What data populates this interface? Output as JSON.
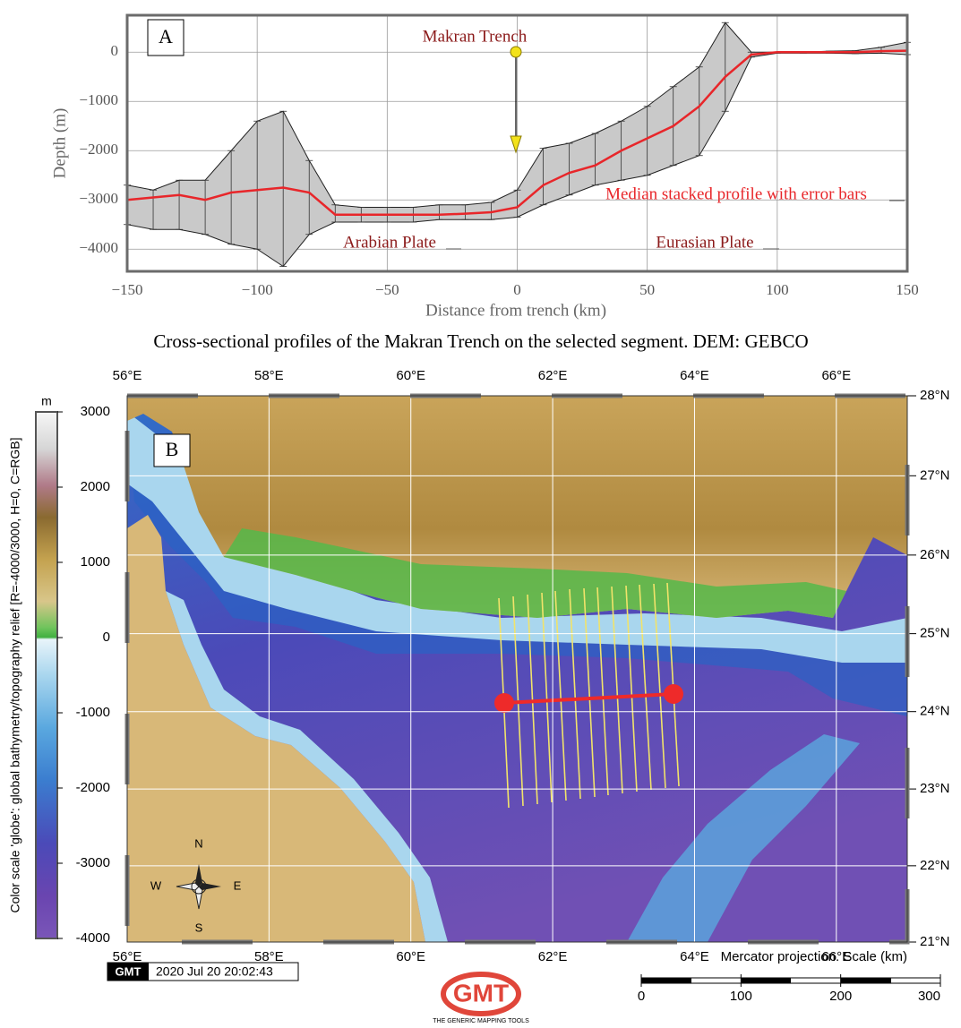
{
  "chart_data": {
    "type": "line",
    "panel_label": "A",
    "title": "Cross-sectional profiles of the Makran Trench on the selected segment. DEM: GEBCO",
    "xlabel": "Distance from trench (km)",
    "ylabel": "Depth (m)",
    "annotations": [
      "Makran Trench",
      "Median stacked profile with error bars",
      "Arabian Plate",
      "Eurasian Plate"
    ],
    "x": [
      -150,
      -140,
      -130,
      -120,
      -110,
      -100,
      -90,
      -80,
      -70,
      -60,
      -50,
      -40,
      -30,
      -20,
      -10,
      0,
      10,
      20,
      30,
      40,
      50,
      60,
      70,
      80,
      90,
      100,
      110,
      120,
      130,
      140,
      150
    ],
    "values": [
      -3000,
      -2950,
      -2900,
      -3000,
      -2850,
      -2800,
      -2750,
      -2850,
      -3300,
      -3300,
      -3300,
      -3300,
      -3300,
      -3280,
      -3250,
      -3150,
      -2700,
      -2450,
      -2300,
      -2000,
      -1750,
      -1500,
      -1100,
      -500,
      -50,
      0,
      0,
      0,
      0,
      20,
      30
    ],
    "upper": [
      -2700,
      -2800,
      -2600,
      -2600,
      -2000,
      -1400,
      -1200,
      -2200,
      -3100,
      -3150,
      -3150,
      -3150,
      -3100,
      -3100,
      -3050,
      -2800,
      -1950,
      -1850,
      -1650,
      -1400,
      -1100,
      -700,
      -300,
      600,
      0,
      0,
      0,
      20,
      30,
      100,
      200
    ],
    "lower": [
      -3500,
      -3600,
      -3600,
      -3700,
      -3900,
      -4000,
      -4350,
      -3700,
      -3450,
      -3450,
      -3450,
      -3450,
      -3400,
      -3400,
      -3400,
      -3350,
      -3100,
      -2900,
      -2700,
      -2600,
      -2500,
      -2300,
      -2100,
      -1200,
      -100,
      -20,
      -20,
      -20,
      -30,
      -20,
      -50
    ],
    "line_color": "#e8262a",
    "band_color": "#c9c9c9",
    "xlim": [
      -150,
      150
    ],
    "xticks": [
      {
        "value": -150,
        "label": "−150"
      },
      {
        "value": -100,
        "label": "−100"
      },
      {
        "value": -50,
        "label": "−50"
      },
      0,
      50,
      100,
      150
    ],
    "ylim": [
      -4450,
      750
    ],
    "yticks": [
      {
        "value": -4000,
        "label": "−4000"
      },
      {
        "value": -3000,
        "label": "−3000"
      },
      {
        "value": -2000,
        "label": "−2000"
      },
      {
        "value": -1000,
        "label": "−1000"
      },
      0
    ],
    "grid": true
  },
  "map": {
    "panel_label": "B",
    "lonlim": [
      56,
      67
    ],
    "latlim": [
      21,
      28
    ],
    "lonticks": [
      {
        "value": 56,
        "label": "56°E"
      },
      {
        "value": 58,
        "label": "58°E"
      },
      {
        "value": 60,
        "label": "60°E"
      },
      {
        "value": 62,
        "label": "62°E"
      },
      {
        "value": 64,
        "label": "64°E"
      },
      {
        "value": 66,
        "label": "66°E"
      }
    ],
    "latticks": [
      {
        "value": 21,
        "label": "21°N"
      },
      {
        "value": 22,
        "label": "22°N"
      },
      {
        "value": 23,
        "label": "23°N"
      },
      {
        "value": 24,
        "label": "24°N"
      },
      {
        "value": 25,
        "label": "25°N"
      },
      {
        "value": 26,
        "label": "26°N"
      },
      {
        "value": 27,
        "label": "27°N"
      },
      {
        "value": 28,
        "label": "28°N"
      }
    ],
    "colorbar": {
      "unit": "m",
      "label": "Color scale 'globe': global bathymetry/topography relief [R=-4000/3000, H=0, C=RGB]",
      "lim": [
        -4000,
        3000
      ],
      "ticks": [
        -4000,
        -3000,
        -2000,
        -1000,
        0,
        1000,
        2000,
        3000
      ]
    },
    "compass": {
      "north": "N",
      "south": "S",
      "west": "W",
      "east": "E"
    },
    "projection_note": "Mercator projection. Scale (km)",
    "scale_bar": {
      "lim": [
        0,
        300
      ],
      "ticks": [
        0,
        100,
        200,
        300
      ]
    }
  },
  "footer": {
    "timestamp_logo": "GMT",
    "timestamp": "2020 Jul 20 20:02:43",
    "logo": "GMT",
    "logo_caption": "THE GENERIC MAPPING TOOLS"
  }
}
